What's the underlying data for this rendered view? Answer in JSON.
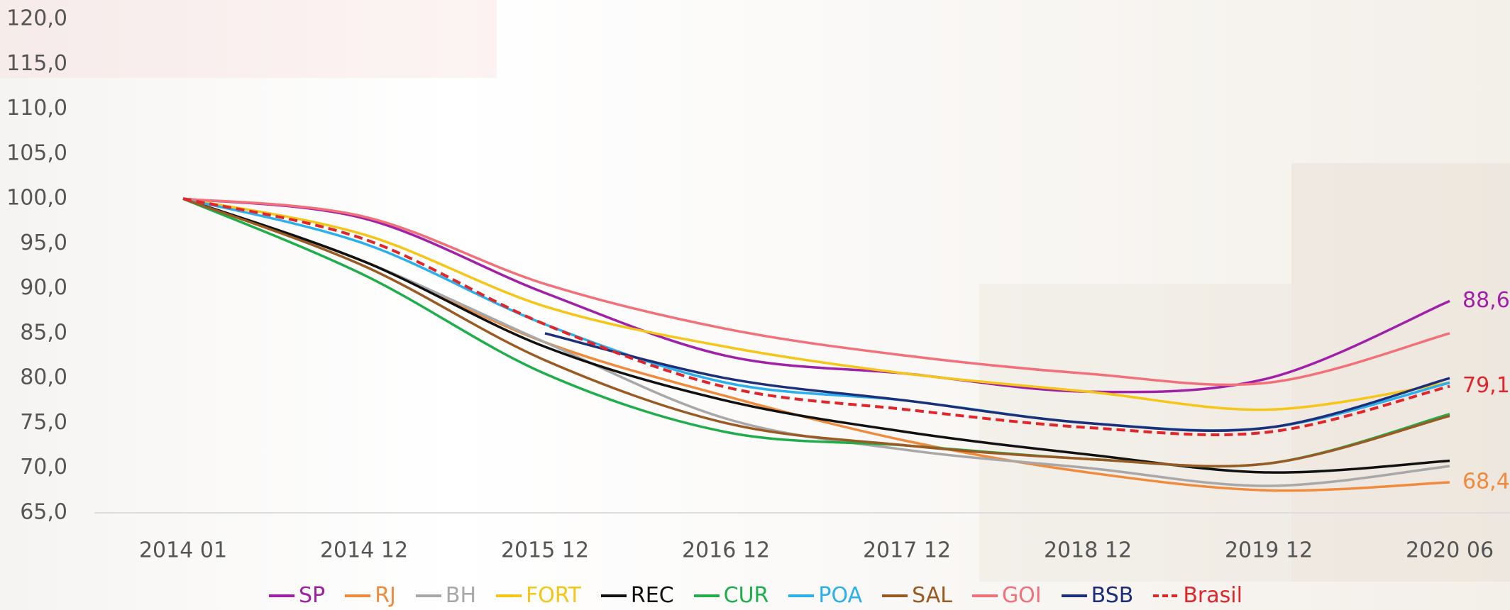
{
  "chart_data": {
    "type": "line",
    "categories": [
      "2014 01",
      "2014 12",
      "2015 12",
      "2016 12",
      "2017 12",
      "2018 12",
      "2019 12",
      "2020 06"
    ],
    "ylim": [
      65,
      120
    ],
    "yticks": [
      {
        "value": 65,
        "label": "65,0"
      },
      {
        "value": 70,
        "label": "70,0"
      },
      {
        "value": 75,
        "label": "75,0"
      },
      {
        "value": 80,
        "label": "80,0"
      },
      {
        "value": 85,
        "label": "85,0"
      },
      {
        "value": 90,
        "label": "90,0"
      },
      {
        "value": 95,
        "label": "95,0"
      },
      {
        "value": 100,
        "label": "100,0"
      },
      {
        "value": 105,
        "label": "105,0"
      },
      {
        "value": 110,
        "label": "110,0"
      },
      {
        "value": 115,
        "label": "115,0"
      },
      {
        "value": 120,
        "label": "120,0"
      }
    ],
    "grid": false,
    "legend": "bottom",
    "series": [
      {
        "name": "SP",
        "color": "#a020a8",
        "values": [
          100,
          97.8,
          89.5,
          82.5,
          80.5,
          78.5,
          80,
          88.6
        ],
        "value_labels": [
          null,
          null,
          null,
          null,
          null,
          null,
          null,
          "88,6"
        ]
      },
      {
        "name": "RJ",
        "color": "#f08a3c",
        "values": [
          100,
          93,
          84,
          78,
          73,
          69.5,
          67.5,
          68.4
        ],
        "value_labels": [
          null,
          null,
          null,
          null,
          null,
          null,
          null,
          "68,4"
        ]
      },
      {
        "name": "BH",
        "color": "#a8a8a8",
        "values": [
          100,
          93,
          84,
          75.5,
          72,
          70,
          68,
          70.2
        ]
      },
      {
        "name": "FORT",
        "color": "#f5c518",
        "values": [
          100,
          96,
          88,
          83.5,
          80.5,
          78.5,
          76.5,
          79.5
        ]
      },
      {
        "name": "REC",
        "color": "#111111",
        "values": [
          100,
          93,
          83.5,
          77.5,
          74,
          71.5,
          69.5,
          70.8
        ]
      },
      {
        "name": "CUR",
        "color": "#1fae4b",
        "values": [
          100,
          91.5,
          80.5,
          74,
          72.5,
          71,
          70.5,
          76
        ]
      },
      {
        "name": "POA",
        "color": "#2ab0ec",
        "values": [
          100,
          95,
          86,
          79.5,
          77.5,
          75,
          74.5,
          79.5
        ]
      },
      {
        "name": "SAL",
        "color": "#9a5a24",
        "values": [
          100,
          92.5,
          82,
          75,
          72.5,
          71,
          70.5,
          75.8
        ]
      },
      {
        "name": "GOI",
        "color": "#f2707a",
        "values": [
          100,
          98,
          90.5,
          85.5,
          82.5,
          80.5,
          79.5,
          85
        ]
      },
      {
        "name": "BSB",
        "color": "#1c2f78",
        "values": [
          null,
          null,
          85,
          80,
          77.5,
          75,
          74.5,
          80
        ]
      },
      {
        "name": "Brasil",
        "color": "#e0262a",
        "line_style": "dashed",
        "values": [
          100,
          95.5,
          86,
          79,
          76.5,
          74.5,
          74,
          79.1
        ],
        "value_labels": [
          null,
          null,
          null,
          null,
          null,
          null,
          null,
          "79,1"
        ]
      }
    ]
  }
}
